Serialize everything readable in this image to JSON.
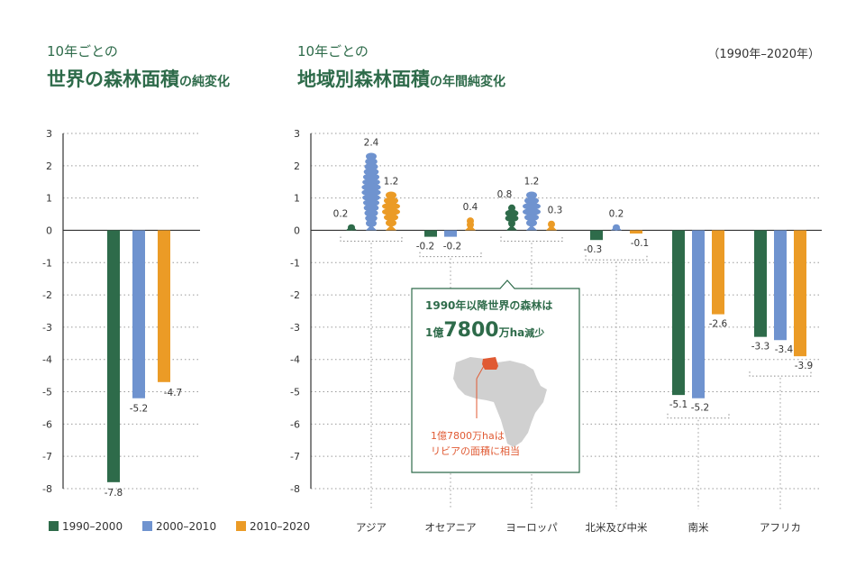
{
  "colors": {
    "s1990": "#2e6b4a",
    "s2000": "#6f93cf",
    "s2010": "#eb9b26",
    "title": "#2e6b4a",
    "red": "#e05a33",
    "africa": "#d0d0d0"
  },
  "left_title": {
    "line1": "10年ごとの",
    "line2": "世界の森林面積",
    "line2_suffix": "の純変化"
  },
  "right_title": {
    "line1": "10年ごとの",
    "line2": "地域別森林面積",
    "line2_suffix": "の年間純変化"
  },
  "period": "（1990年–2020年）",
  "legend": [
    {
      "label": "1990–2000",
      "color_key": "s1990"
    },
    {
      "label": "2000–2010",
      "color_key": "s2000"
    },
    {
      "label": "2010–2020",
      "color_key": "s2010"
    }
  ],
  "callout": {
    "line1": "1990年以降世界の森林は",
    "big_a": "1億",
    "big_b": "7800",
    "big_c": "万ha",
    "big_d": "減少",
    "note1": "1億7800万haは",
    "note2": "リビアの面積に相当"
  },
  "chart_data": [
    {
      "type": "bar",
      "ylim": [
        -8,
        3
      ],
      "yticks": [
        3,
        2,
        1,
        0,
        -1,
        -2,
        -3,
        -4,
        -5,
        -6,
        -7,
        -8
      ],
      "categories": [
        ""
      ],
      "series": [
        {
          "name": "1990–2000",
          "values": [
            -7.8
          ],
          "labels": [
            "-7.8"
          ]
        },
        {
          "name": "2000–2010",
          "values": [
            -5.2
          ],
          "labels": [
            "-5.2"
          ]
        },
        {
          "name": "2010–2020",
          "values": [
            -4.7
          ],
          "labels": [
            "-4.7"
          ]
        }
      ],
      "grid": true
    },
    {
      "type": "bar",
      "ylim": [
        -8,
        3
      ],
      "yticks": [
        3,
        2,
        1,
        0,
        -1,
        -2,
        -3,
        -4,
        -5,
        -6,
        -7,
        -8
      ],
      "categories": [
        "アジア",
        "オセアニア",
        "ヨーロッパ",
        "北米及び中米",
        "南米",
        "アフリカ"
      ],
      "series": [
        {
          "name": "1990–2000",
          "values": [
            0.2,
            -0.2,
            0.8,
            -0.3,
            -5.1,
            -3.3
          ],
          "labels": [
            "0.2",
            "-0.2",
            "0.8",
            "-0.3",
            "-5.1",
            "-3.3"
          ]
        },
        {
          "name": "2000–2010",
          "values": [
            2.4,
            -0.2,
            1.2,
            0.2,
            -5.2,
            -3.4
          ],
          "labels": [
            "2.4",
            "-0.2",
            "1.2",
            "0.2",
            "-5.2",
            "-3.4"
          ]
        },
        {
          "name": "2010–2020",
          "values": [
            1.2,
            0.4,
            0.3,
            -0.1,
            -2.6,
            -3.9
          ],
          "labels": [
            "1.2",
            "0.4",
            "0.3",
            "-0.1",
            "-2.6",
            "-3.9"
          ]
        }
      ],
      "grid": true
    }
  ]
}
